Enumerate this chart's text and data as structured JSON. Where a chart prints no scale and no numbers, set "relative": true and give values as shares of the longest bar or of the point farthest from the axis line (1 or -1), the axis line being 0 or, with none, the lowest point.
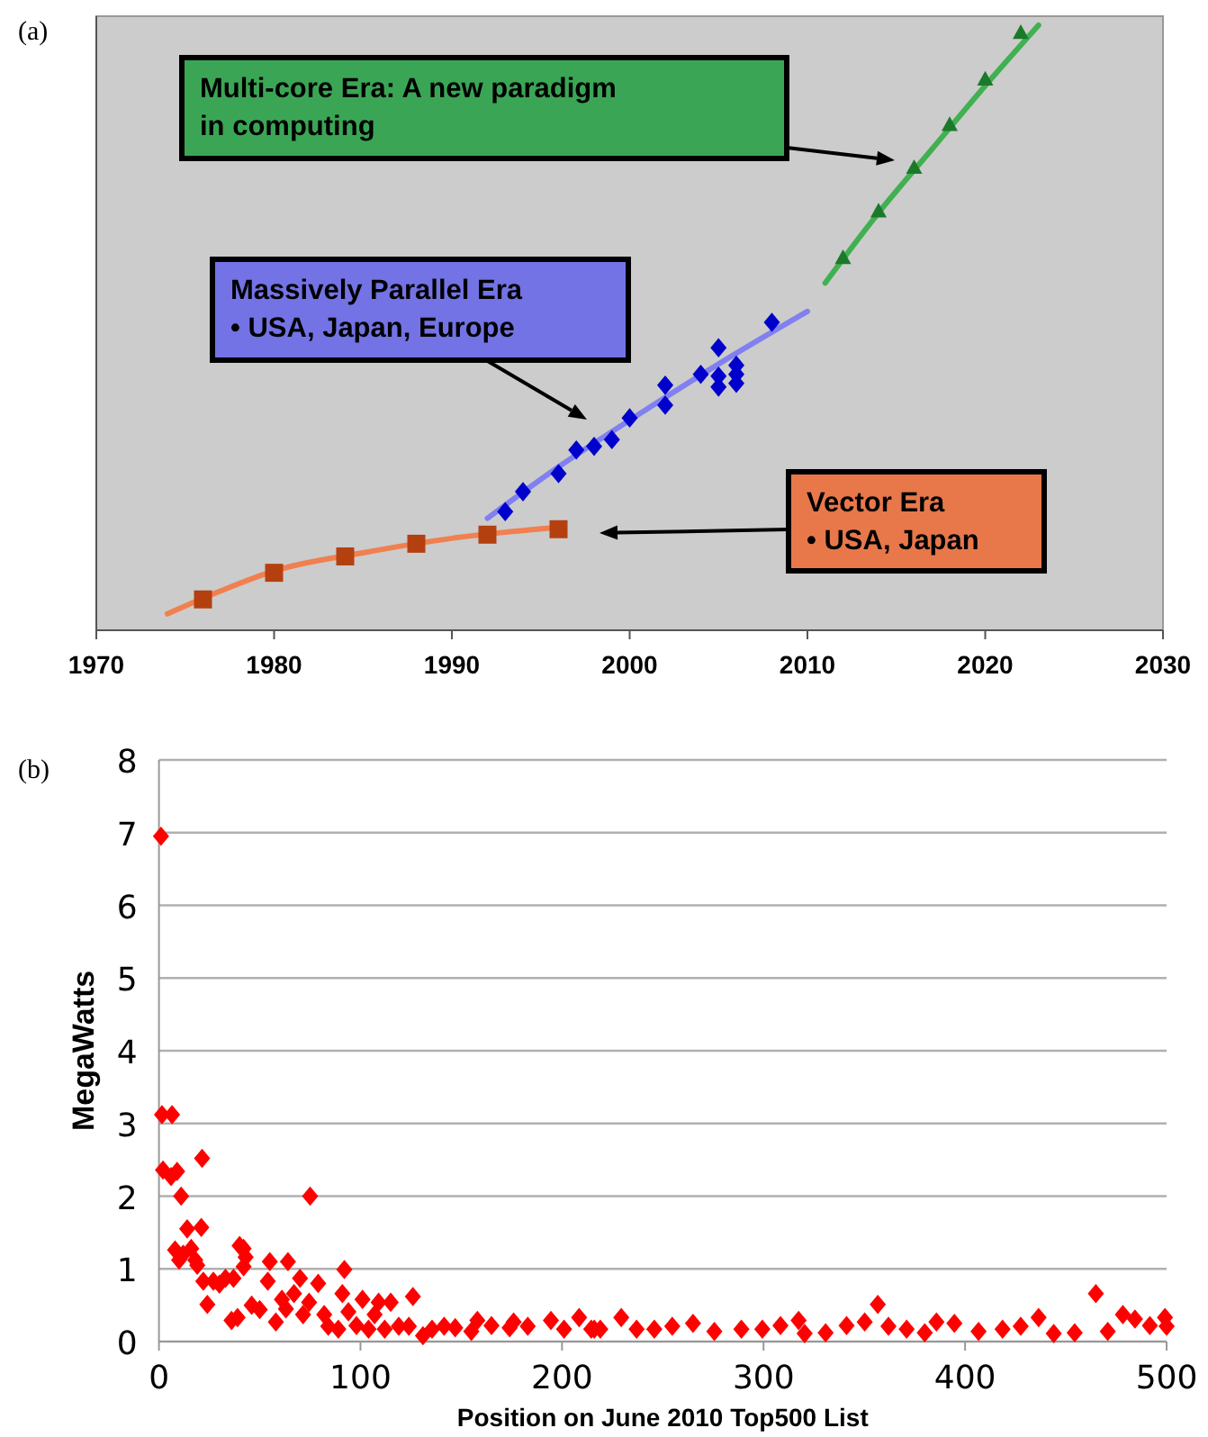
{
  "chart_data": [
    {
      "type": "scatter",
      "title": "(a)",
      "relative": true,
      "xlim": [
        1970,
        2030
      ],
      "xticks": [
        1970,
        1980,
        1990,
        2000,
        2010,
        2020,
        2030
      ],
      "grid": false,
      "series": [
        {
          "type": "line",
          "color": "#f08050",
          "marker": "none",
          "x": [
            1974,
            1977,
            1980,
            1985,
            1990,
            1993,
            1996
          ],
          "values": [
            0.027,
            0.065,
            0.098,
            0.128,
            0.152,
            0.162,
            0.17
          ]
        },
        {
          "type": "scatter",
          "color": "#b5400f",
          "marker": "square",
          "x": [
            1976,
            1980,
            1984,
            1988,
            1992,
            1996
          ],
          "values": [
            0.051,
            0.095,
            0.122,
            0.143,
            0.158,
            0.167
          ]
        },
        {
          "type": "line",
          "color": "#8080f0",
          "marker": "none",
          "x": [
            1992,
            1996,
            2001,
            2005,
            2010
          ],
          "values": [
            0.185,
            0.27,
            0.366,
            0.44,
            0.527
          ]
        },
        {
          "type": "scatter",
          "color": "#0000cc",
          "marker": "diamond",
          "x": [
            1993,
            1994,
            1996,
            1997,
            1998,
            1999,
            2000,
            2002,
            2002,
            2004,
            2005,
            2005,
            2005,
            2006,
            2006,
            2006,
            2008
          ],
          "values": [
            0.196,
            0.229,
            0.259,
            0.298,
            0.304,
            0.315,
            0.351,
            0.405,
            0.372,
            0.423,
            0.467,
            0.42,
            0.402,
            0.438,
            0.423,
            0.408,
            0.509
          ]
        },
        {
          "type": "line",
          "color": "#40b050",
          "marker": "none",
          "x": [
            2011,
            2014,
            2017,
            2020,
            2023
          ],
          "values": [
            0.574,
            0.69,
            0.795,
            0.9,
            1.0
          ]
        },
        {
          "type": "scatter",
          "color": "#1a7a2a",
          "marker": "triangle",
          "x": [
            2012,
            2014,
            2016,
            2018,
            2020,
            2022
          ],
          "values": [
            0.616,
            0.693,
            0.765,
            0.836,
            0.911,
            0.988
          ]
        }
      ],
      "annotations": [
        "Multi-core Era: A new paradigm in computing",
        "Massively Parallel Era • USA, Japan, Europe",
        "Vector Era • USA, Japan"
      ]
    },
    {
      "type": "scatter",
      "title": "(b)",
      "xlabel": "Position on June 2010 Top500 List",
      "ylabel": "MegaWatts",
      "xlim": [
        0,
        500
      ],
      "xticks": [
        0,
        100,
        200,
        300,
        400,
        500
      ],
      "ylim": [
        0,
        8
      ],
      "yticks": [
        0,
        1,
        2,
        3,
        4,
        5,
        6,
        7,
        8
      ],
      "grid": "y",
      "marker": "diamond",
      "series": [
        {
          "color": "#ff0000",
          "x": [
            1,
            1.5,
            6.5,
            2,
            6,
            9,
            11,
            21.4,
            21,
            14,
            8,
            12,
            16,
            18,
            10,
            19,
            22,
            24,
            27,
            30,
            33,
            37,
            36,
            39,
            40,
            42,
            43,
            42,
            46,
            50,
            54,
            55,
            58,
            61,
            64,
            63,
            67,
            70,
            71.5,
            75,
            74.5,
            79,
            82,
            84,
            92,
            91,
            94,
            89,
            98,
            101,
            104,
            109,
            107,
            115,
            112,
            119,
            126,
            124,
            131,
            135.5,
            141.5,
            147,
            155,
            158,
            165,
            174,
            176,
            183,
            194.5,
            201,
            208.5,
            214.5,
            219,
            216,
            229.4,
            237,
            245.8,
            254.7,
            265,
            275.6,
            289,
            299.4,
            308.4,
            317.4,
            320.4,
            330.8,
            341.2,
            350.2,
            356.7,
            362,
            371,
            380,
            385.8,
            394.7,
            406.7,
            418.6,
            427.6,
            436.5,
            444,
            454.4,
            464.9,
            470.8,
            478.3,
            484.3,
            491.7,
            499.2,
            500
          ],
          "values": [
            6.95,
            3.12,
            3.12,
            2.36,
            2.27,
            2.34,
            2.0,
            2.52,
            1.57,
            1.55,
            1.26,
            1.2,
            1.28,
            1.12,
            1.12,
            1.05,
            0.83,
            0.51,
            0.83,
            0.79,
            0.87,
            0.87,
            0.29,
            0.33,
            1.32,
            1.28,
            1.16,
            1.03,
            0.5,
            0.44,
            0.83,
            1.1,
            0.27,
            0.58,
            1.1,
            0.45,
            0.66,
            0.87,
            0.37,
            2.0,
            0.54,
            0.8,
            0.37,
            0.21,
            0.99,
            0.66,
            0.41,
            0.17,
            0.22,
            0.58,
            0.17,
            0.54,
            0.37,
            0.54,
            0.17,
            0.21,
            0.62,
            0.21,
            0.08,
            0.17,
            0.21,
            0.19,
            0.14,
            0.29,
            0.22,
            0.19,
            0.27,
            0.21,
            0.29,
            0.17,
            0.33,
            0.17,
            0.17,
            0.17,
            0.33,
            0.17,
            0.17,
            0.21,
            0.25,
            0.14,
            0.17,
            0.17,
            0.22,
            0.29,
            0.11,
            0.12,
            0.22,
            0.27,
            0.51,
            0.21,
            0.17,
            0.12,
            0.27,
            0.25,
            0.14,
            0.17,
            0.21,
            0.33,
            0.11,
            0.12,
            0.66,
            0.14,
            0.37,
            0.31,
            0.22,
            0.33,
            0.21
          ]
        }
      ]
    }
  ]
}
